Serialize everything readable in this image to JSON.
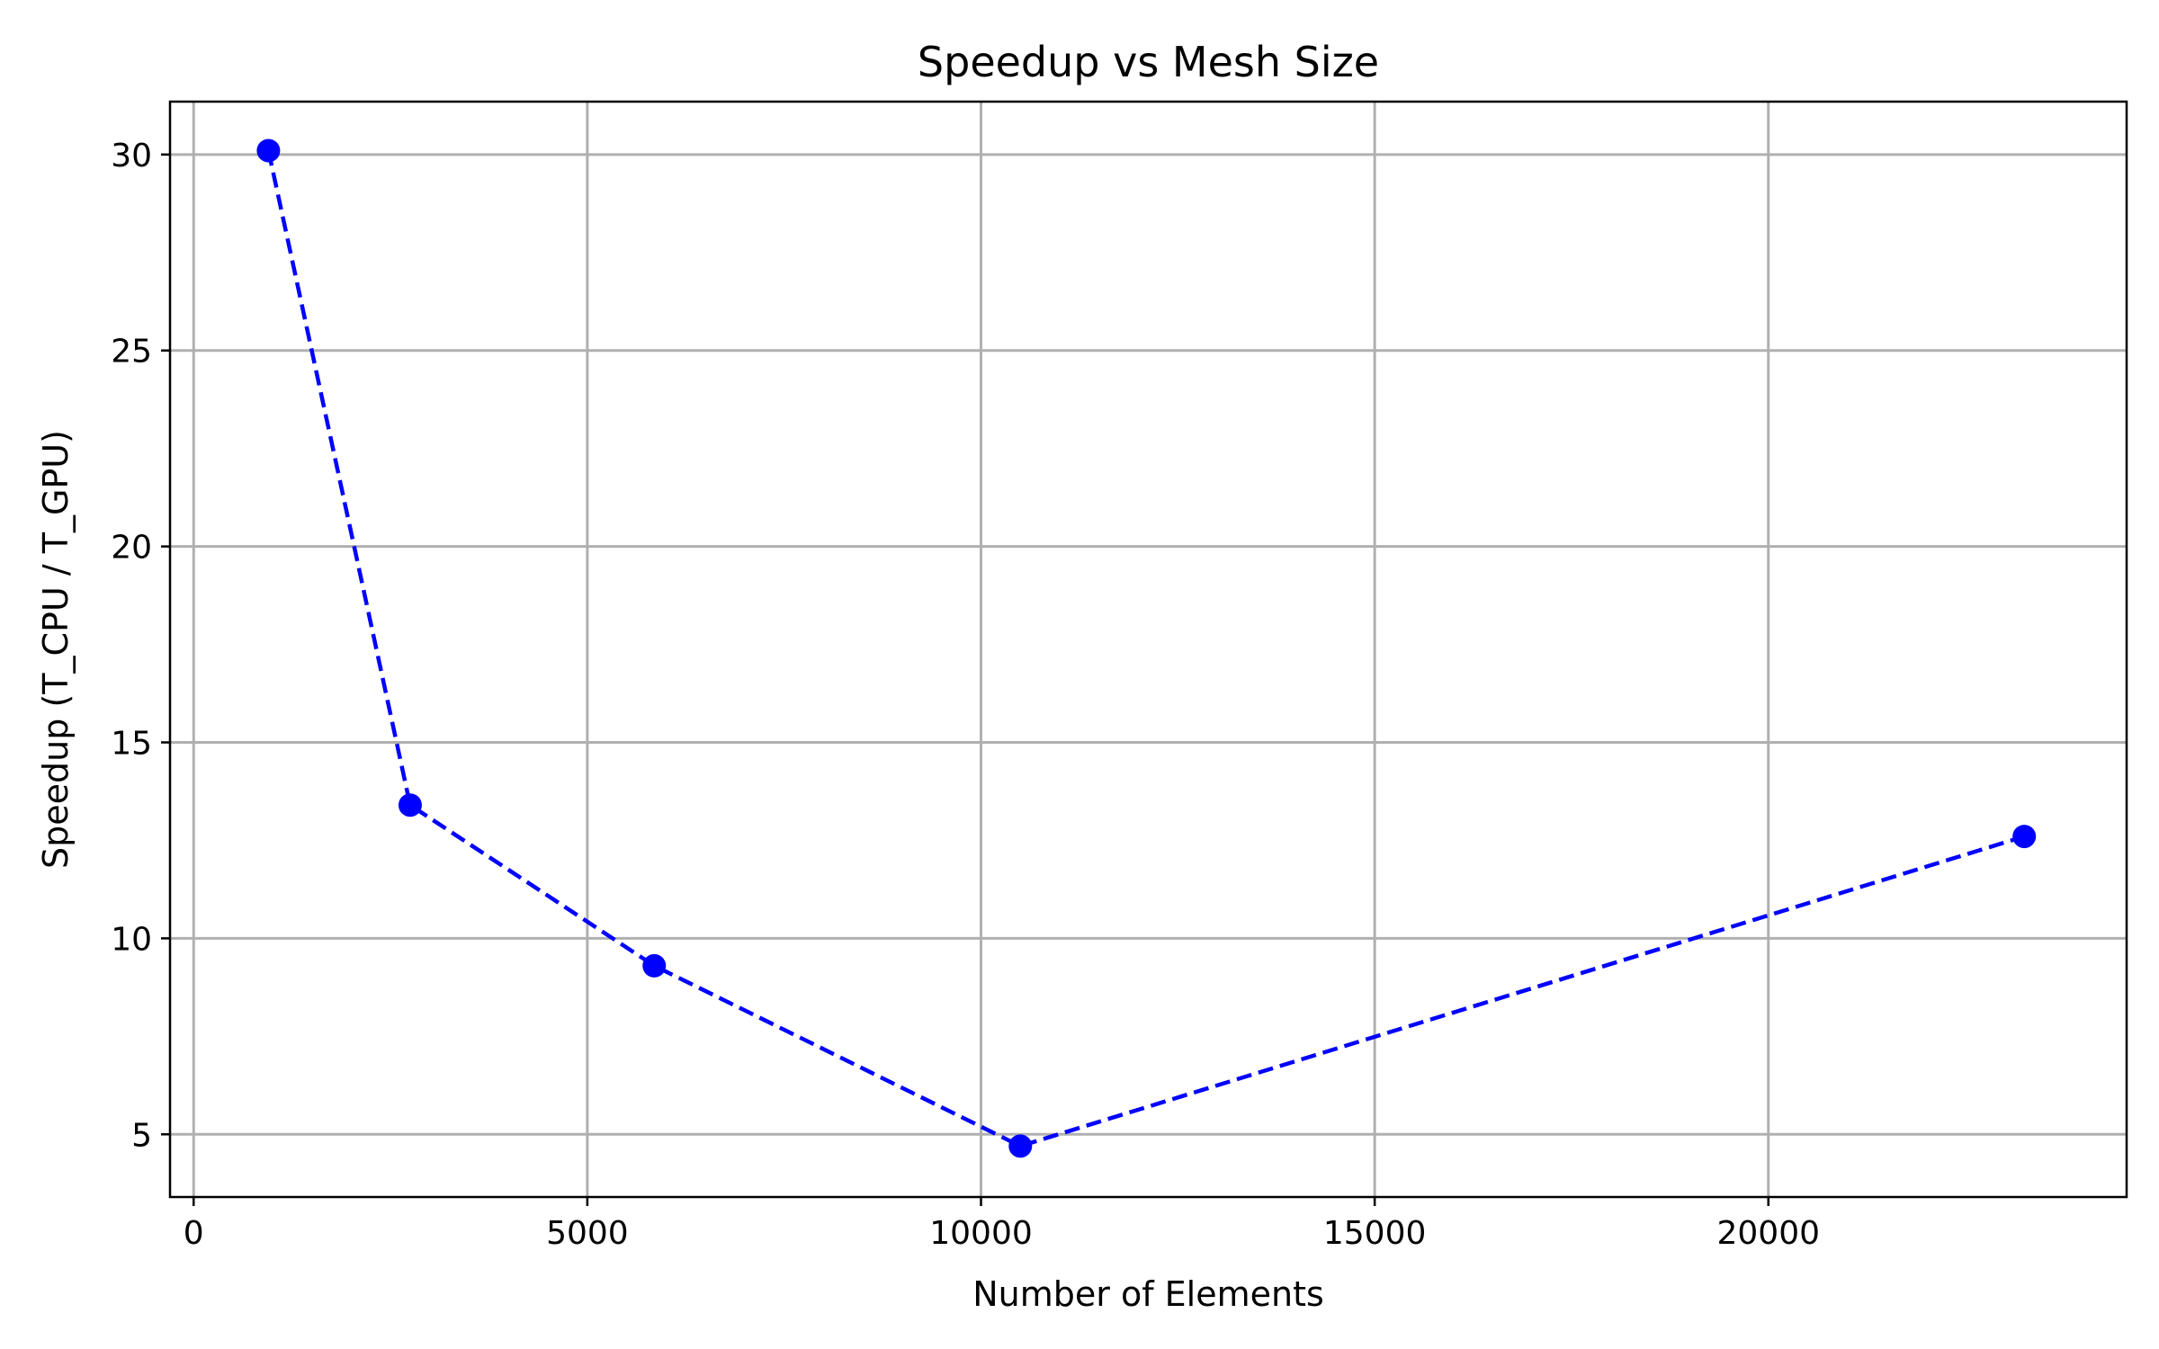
{
  "chart_data": {
    "type": "line",
    "title": "Speedup vs Mesh Size",
    "xlabel": "Number of Elements",
    "ylabel": "Speedup (T_CPU / T_GPU)",
    "xlim": [
      -300,
      24550
    ],
    "ylim": [
      3.4,
      31.35
    ],
    "xticks": [
      0,
      5000,
      10000,
      15000,
      20000
    ],
    "yticks": [
      5,
      10,
      15,
      20,
      25,
      30
    ],
    "grid": true,
    "series": [
      {
        "x": [
          950,
          2750,
          5850,
          10500,
          23250
        ],
        "y": [
          30.1,
          13.4,
          9.3,
          4.7,
          12.6
        ],
        "color": "#0000ff",
        "line_style": "dashed",
        "marker": "circle"
      }
    ]
  }
}
